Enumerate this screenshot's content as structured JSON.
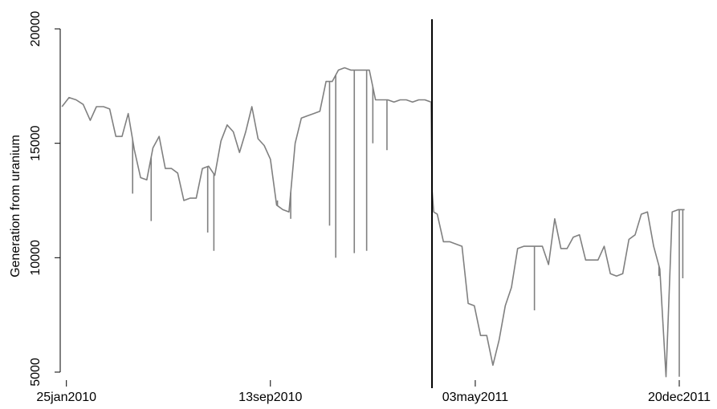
{
  "chart_data": {
    "type": "line",
    "title": "",
    "xlabel": "",
    "ylabel": "Generation from uranium",
    "xlim": [
      "2010-01-18",
      "2012-01-09"
    ],
    "ylim": [
      5000,
      20000
    ],
    "yticks": [
      5000,
      10000,
      15000,
      20000
    ],
    "xticks": [
      "25jan2010",
      "13sep2010",
      "03may2011",
      "20dec2011"
    ],
    "xtick_dates": [
      "2010-01-25",
      "2010-09-13",
      "2011-05-03",
      "2011-12-20"
    ],
    "grid": false,
    "legend": "none",
    "line_color": "#808080",
    "event_line": {
      "date": "2011-03-15",
      "color": "#000000"
    },
    "series": [
      {
        "x": [
          "2010-01-20",
          "2010-01-28",
          "2010-02-05",
          "2010-02-13",
          "2010-02-21",
          "2010-02-28",
          "2010-03-08",
          "2010-03-15",
          "2010-03-22",
          "2010-03-29",
          "2010-04-05",
          "2010-04-12",
          "2010-04-19",
          "2010-04-26",
          "2010-05-03",
          "2010-05-10",
          "2010-05-17",
          "2010-05-24",
          "2010-05-31",
          "2010-06-07",
          "2010-06-14",
          "2010-06-21",
          "2010-06-28",
          "2010-07-05",
          "2010-07-12",
          "2010-07-19",
          "2010-07-26",
          "2010-08-02",
          "2010-08-09",
          "2010-08-16",
          "2010-08-23",
          "2010-08-30",
          "2010-09-06",
          "2010-09-13",
          "2010-09-20",
          "2010-09-27",
          "2010-10-04",
          "2010-10-11",
          "2010-10-18",
          "2010-10-25",
          "2010-11-01",
          "2010-11-08",
          "2010-11-15",
          "2010-11-22",
          "2010-11-29",
          "2010-12-06",
          "2010-12-13",
          "2010-12-20",
          "2010-12-27",
          "2011-01-03",
          "2011-01-10",
          "2011-01-17",
          "2011-01-24",
          "2011-01-31",
          "2011-02-07",
          "2011-02-14",
          "2011-02-21",
          "2011-02-28",
          "2011-03-07",
          "2011-03-14",
          "2011-03-15",
          "2011-03-17",
          "2011-03-21",
          "2011-03-28",
          "2011-04-04",
          "2011-04-11",
          "2011-04-18",
          "2011-04-25",
          "2011-05-02",
          "2011-05-09",
          "2011-05-16",
          "2011-05-23",
          "2011-05-30",
          "2011-06-06",
          "2011-06-13",
          "2011-06-20",
          "2011-06-27",
          "2011-07-04",
          "2011-07-11",
          "2011-07-18",
          "2011-07-25",
          "2011-08-01",
          "2011-08-08",
          "2011-08-15",
          "2011-08-22",
          "2011-08-29",
          "2011-09-05",
          "2011-09-12",
          "2011-09-19",
          "2011-09-26",
          "2011-10-03",
          "2011-10-10",
          "2011-10-17",
          "2011-10-24",
          "2011-10-31",
          "2011-11-07",
          "2011-11-14",
          "2011-11-21",
          "2011-11-28",
          "2011-12-05",
          "2011-12-12",
          "2011-12-19",
          "2011-12-26"
        ],
        "y": [
          16600,
          17000,
          16900,
          16700,
          16000,
          16600,
          16600,
          16500,
          15300,
          15300,
          16300,
          14700,
          13500,
          13400,
          14800,
          15300,
          13900,
          13900,
          13700,
          12500,
          12600,
          12600,
          13900,
          14000,
          13600,
          15100,
          15800,
          15500,
          14600,
          15500,
          16600,
          15200,
          14900,
          14300,
          12300,
          12100,
          12000,
          15000,
          16100,
          16200,
          16300,
          16400,
          17700,
          17700,
          18200,
          18300,
          18200,
          18200,
          18200,
          18200,
          16900,
          16900,
          16900,
          16800,
          16900,
          16900,
          16800,
          16900,
          16900,
          16800,
          13000,
          12000,
          11900,
          10700,
          10700,
          10600,
          10500,
          8000,
          7900,
          6600,
          6600,
          5300,
          6400,
          7900,
          8700,
          10400,
          10500,
          10500,
          10500,
          10500,
          9700,
          11700,
          10400,
          10400,
          10900,
          11000,
          9900,
          9900,
          9900,
          10500,
          9300,
          9200,
          9300,
          10800,
          11000,
          11900,
          12000,
          10500,
          9500,
          4800,
          12000,
          12100,
          12100
        ]
      }
    ],
    "spikes": [
      {
        "x": "2010-04-10",
        "y": 12800
      },
      {
        "x": "2010-05-01",
        "y": 11600
      },
      {
        "x": "2010-07-04",
        "y": 11100
      },
      {
        "x": "2010-07-11",
        "y": 10300
      },
      {
        "x": "2010-09-21",
        "y": 12500
      },
      {
        "x": "2010-10-06",
        "y": 11700
      },
      {
        "x": "2010-11-19",
        "y": 11400
      },
      {
        "x": "2010-11-26",
        "y": 10000
      },
      {
        "x": "2010-12-17",
        "y": 10200
      },
      {
        "x": "2010-12-31",
        "y": 10300
      },
      {
        "x": "2011-01-07",
        "y": 15000
      },
      {
        "x": "2011-01-23",
        "y": 14700
      },
      {
        "x": "2011-07-09",
        "y": 7700
      },
      {
        "x": "2011-11-27",
        "y": 9200
      },
      {
        "x": "2011-12-20",
        "y": 4800
      },
      {
        "x": "2011-12-24",
        "y": 9100
      }
    ]
  }
}
